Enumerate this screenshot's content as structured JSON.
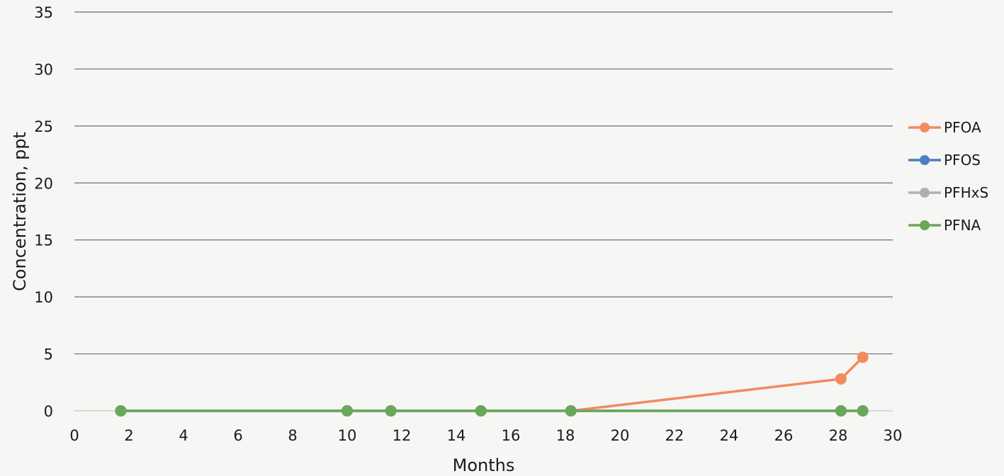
{
  "chart_data": {
    "type": "line",
    "title": "",
    "xlabel": "Months",
    "ylabel": "Concentration, ppt",
    "xlim": [
      0,
      30
    ],
    "ylim": [
      0,
      35
    ],
    "xticks": [
      0,
      2,
      4,
      6,
      8,
      10,
      12,
      14,
      16,
      18,
      20,
      22,
      24,
      26,
      28,
      30
    ],
    "yticks": [
      0,
      5,
      10,
      15,
      20,
      25,
      30,
      35
    ],
    "grid": true,
    "legend": "right",
    "series": [
      {
        "name": "PFOA",
        "color": "#f4895f",
        "x": [
          1.7,
          10,
          11.6,
          14.9,
          18.2,
          28.1,
          28.9
        ],
        "y": [
          0,
          0,
          0,
          0,
          0,
          2.8,
          4.7
        ]
      },
      {
        "name": "PFOS",
        "color": "#4a7fc1",
        "x": [
          1.7,
          10,
          11.6,
          14.9,
          18.2,
          28.1,
          28.9
        ],
        "y": [
          0,
          0,
          0,
          0,
          0,
          0,
          0
        ]
      },
      {
        "name": "PFHxS",
        "color": "#b0b0b0",
        "x": [
          1.7,
          10,
          11.6,
          14.9,
          18.2,
          28.1,
          28.9
        ],
        "y": [
          0,
          0,
          0,
          0,
          0,
          0,
          0
        ]
      },
      {
        "name": "PFNA",
        "color": "#6aa75a",
        "x": [
          1.7,
          10,
          11.6,
          14.9,
          18.2,
          28.1,
          28.9
        ],
        "y": [
          0,
          0,
          0,
          0,
          0,
          0,
          0
        ]
      }
    ]
  }
}
